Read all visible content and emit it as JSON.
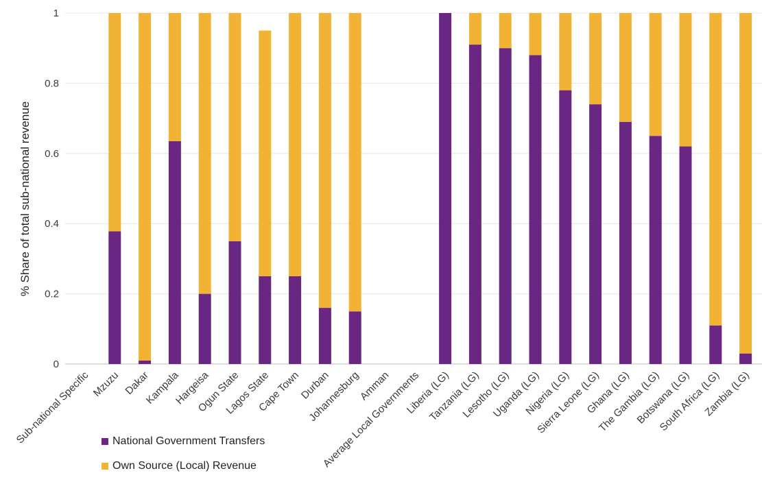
{
  "chart_data": {
    "type": "bar",
    "stacked": true,
    "ylabel": "% Share of total sub-national revenue",
    "xlabel": "",
    "ylim": [
      0,
      1
    ],
    "yticks": [
      "0",
      "0.2",
      "0.4",
      "0.6",
      "0.8",
      "1"
    ],
    "grid": true,
    "legend_position": "bottom-left",
    "categories": [
      "Sub-national Specific",
      "Mzuzu",
      "Dakar",
      "Kampala",
      "Hargeisa",
      "Ogun State",
      "Lagos State",
      "Cape Town",
      "Durban",
      "Johannesburg",
      "Amman",
      "Average Local Governments",
      "Liberia (LG)",
      "Tanzania (LG)",
      "Lesotho (LG)",
      "Uganda (LG)",
      "Nigeria (LG)",
      "Sierra Leone (LG)",
      "Ghana (LG)",
      "The Gambia (LG)",
      "Botswana (LG)",
      "South Africa (LG)",
      "Zambia (LG)"
    ],
    "series": [
      {
        "name": "National Government Transfers",
        "color": "#6a2683",
        "values": [
          0,
          0.378,
          0.01,
          0.635,
          0.2,
          0.35,
          0.25,
          0.25,
          0.16,
          0.15,
          0,
          0,
          1.0,
          0.91,
          0.9,
          0.88,
          0.78,
          0.74,
          0.69,
          0.65,
          0.62,
          0.11,
          0.03
        ]
      },
      {
        "name": "Own Source (Local) Revenue",
        "color": "#f2b233",
        "values": [
          0,
          0.622,
          0.99,
          0.365,
          0.8,
          0.65,
          0.7,
          0.75,
          0.84,
          0.85,
          0,
          0,
          0,
          0.09,
          0.1,
          0.12,
          0.22,
          0.26,
          0.31,
          0.35,
          0.38,
          0.89,
          0.97
        ]
      }
    ]
  }
}
